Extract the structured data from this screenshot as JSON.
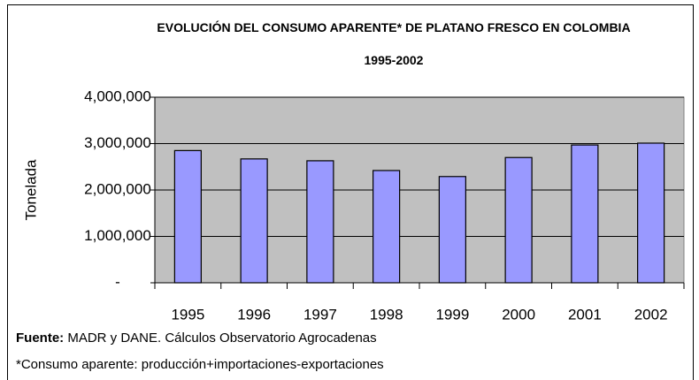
{
  "chart_data": {
    "type": "bar",
    "title": "EVOLUCIÓN DEL CONSUMO APARENTE* DE PLATANO FRESCO EN COLOMBIA 1995-2002",
    "y_label": "Tonelada",
    "categories": [
      "1995",
      "1996",
      "1997",
      "1998",
      "1999",
      "2000",
      "2001",
      "2002"
    ],
    "values": [
      2850000,
      2670000,
      2630000,
      2420000,
      2290000,
      2700000,
      2970000,
      3010000
    ],
    "color": "#9999ff",
    "ylim": [
      0,
      4000000
    ],
    "yticks": [
      {
        "value": 0,
        "label": "-"
      },
      {
        "value": 1000000,
        "label": "1,000,000"
      },
      {
        "value": 2000000,
        "label": "2,000,000"
      },
      {
        "value": 3000000,
        "label": "3,000,000"
      },
      {
        "value": 4000000,
        "label": "4,000,000"
      }
    ],
    "grid": true,
    "source_label": "Fuente:",
    "source": "MADR y DANE. Cálculos Observatorio Agrocadenas",
    "note": "*Consumo aparente: producción+importaciones-exportaciones"
  }
}
